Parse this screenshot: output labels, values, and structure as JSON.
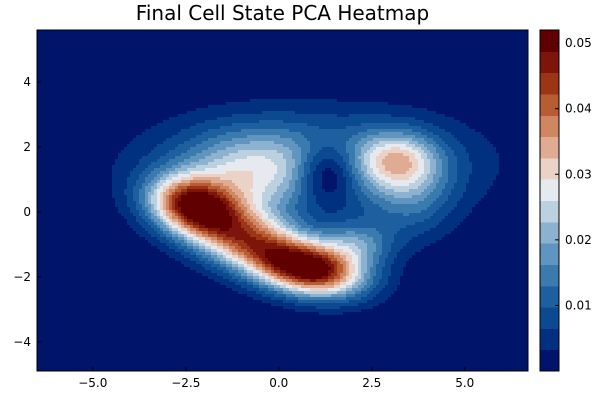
{
  "chart_data": {
    "type": "heatmap",
    "style": "filled-contour",
    "title": "Final Cell State PCA Heatmap",
    "xlabel": "",
    "ylabel": "",
    "xlim": [
      -6.5,
      6.7
    ],
    "ylim": [
      -4.9,
      5.6
    ],
    "x_ticks": [
      -5,
      -2.5,
      0,
      2.5,
      5
    ],
    "x_tick_labels": [
      "−5.0",
      "−2.5",
      "0.0",
      "2.5",
      "5.0"
    ],
    "y_ticks": [
      -4,
      -2,
      0,
      2,
      4
    ],
    "y_tick_labels": [
      "−4",
      "−2",
      "0",
      "2",
      "4"
    ],
    "grid": false,
    "colorbar": {
      "range": [
        0,
        0.052
      ],
      "ticks": [
        0.01,
        0.02,
        0.03,
        0.04,
        0.05
      ],
      "tick_labels": [
        "0.01",
        "0.02",
        "0.03",
        "0.04",
        "0.05"
      ],
      "levels": 16,
      "colormap": "blue-white-red (balance)",
      "colors": [
        "#00156a",
        "#023080",
        "#0b4a91",
        "#1d5f9f",
        "#3a7aad",
        "#5f95be",
        "#8cb2cf",
        "#bcd1e0",
        "#e6e9ee",
        "#ead3c6",
        "#dfab92",
        "#cf8661",
        "#b85c34",
        "#9c3518",
        "#7d150a",
        "#600000"
      ]
    },
    "components": [
      {
        "label": "peak",
        "x": 0.9,
        "y": -1.8,
        "amplitude": 0.052
      },
      {
        "label": "peak",
        "x": -2.3,
        "y": 0.2,
        "amplitude": 0.045
      },
      {
        "label": "ridge",
        "x": -0.7,
        "y": -0.9,
        "amplitude": 0.04
      },
      {
        "label": "hole",
        "x": 1.3,
        "y": 1.2,
        "amplitude": 0.001
      },
      {
        "label": "peak",
        "x": 3.2,
        "y": 1.6,
        "amplitude": 0.025
      }
    ]
  }
}
